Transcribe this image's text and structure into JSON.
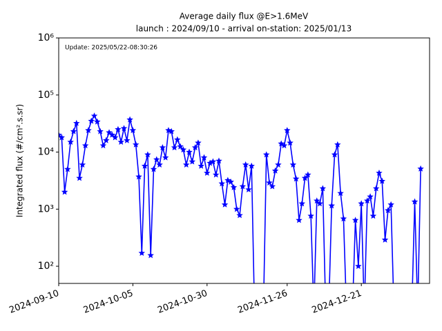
{
  "chart_data": {
    "type": "line",
    "title": "Average daily flux @E>1.6MeV",
    "subtitle": "launch : 2024/09/10 - arrival on-station: 2025/01/13",
    "annotation": "Update: 2025/05/22-08:30:26",
    "y_label": "Integrated flux (#/cm².s.sr)",
    "log_y": true,
    "grid": false,
    "xlim": [
      "2024-09-10",
      "2025-01-13"
    ],
    "xticks": [
      "2024-09-10",
      "2024-10-05",
      "2024-10-30",
      "2024-11-26",
      "2024-12-21"
    ],
    "ylim": [
      50,
      1000000
    ],
    "yticks": [
      {
        "value": 100,
        "label": "10²"
      },
      {
        "value": 1000,
        "label": "10³"
      },
      {
        "value": 10000,
        "label": "10⁴"
      },
      {
        "value": 100000,
        "label": "10⁵"
      },
      {
        "value": 1000000,
        "label": "10⁶"
      }
    ],
    "x": [
      "2024-09-10",
      "2024-09-11",
      "2024-09-12",
      "2024-09-13",
      "2024-09-14",
      "2024-09-15",
      "2024-09-16",
      "2024-09-17",
      "2024-09-18",
      "2024-09-19",
      "2024-09-20",
      "2024-09-21",
      "2024-09-22",
      "2024-09-23",
      "2024-09-24",
      "2024-09-25",
      "2024-09-26",
      "2024-09-27",
      "2024-09-28",
      "2024-09-29",
      "2024-09-30",
      "2024-10-01",
      "2024-10-02",
      "2024-10-03",
      "2024-10-04",
      "2024-10-05",
      "2024-10-06",
      "2024-10-07",
      "2024-10-08",
      "2024-10-09",
      "2024-10-10",
      "2024-10-11",
      "2024-10-12",
      "2024-10-13",
      "2024-10-14",
      "2024-10-15",
      "2024-10-16",
      "2024-10-17",
      "2024-10-18",
      "2024-10-19",
      "2024-10-20",
      "2024-10-21",
      "2024-10-22",
      "2024-10-23",
      "2024-10-24",
      "2024-10-25",
      "2024-10-26",
      "2024-10-27",
      "2024-10-28",
      "2024-10-29",
      "2024-10-30",
      "2024-10-31",
      "2024-11-01",
      "2024-11-02",
      "2024-11-03",
      "2024-11-04",
      "2024-11-05",
      "2024-11-06",
      "2024-11-07",
      "2024-11-08",
      "2024-11-09",
      "2024-11-10",
      "2024-11-11",
      "2024-11-12",
      "2024-11-13",
      "2024-11-14",
      "2024-11-15",
      "2024-11-16",
      "2024-11-17",
      "2024-11-18",
      "2024-11-19",
      "2024-11-20",
      "2024-11-21",
      "2024-11-22",
      "2024-11-23",
      "2024-11-24",
      "2024-11-25",
      "2024-11-26",
      "2024-11-27",
      "2024-11-28",
      "2024-11-29",
      "2024-11-30",
      "2024-12-01",
      "2024-12-02",
      "2024-12-03",
      "2024-12-04",
      "2024-12-05",
      "2024-12-06",
      "2024-12-07",
      "2024-12-08",
      "2024-12-09",
      "2024-12-10",
      "2024-12-11",
      "2024-12-12",
      "2024-12-13",
      "2024-12-14",
      "2024-12-15",
      "2024-12-16",
      "2024-12-17",
      "2024-12-18",
      "2024-12-19",
      "2024-12-20",
      "2024-12-21",
      "2024-12-22",
      "2024-12-23",
      "2024-12-24",
      "2024-12-25",
      "2024-12-26",
      "2024-12-27",
      "2024-12-28",
      "2024-12-29",
      "2024-12-30",
      "2024-12-31",
      "2025-01-01",
      "2025-01-02",
      "2025-01-03",
      "2025-01-04",
      "2025-01-05",
      "2025-01-06",
      "2025-01-07",
      "2025-01-08",
      "2025-01-09",
      "2025-01-10"
    ],
    "series": [
      {
        "name": "flux",
        "color": "#0000ff",
        "values": [
          20000,
          18000,
          2000,
          5000,
          15000,
          23000,
          32000,
          3500,
          6000,
          13000,
          24000,
          35000,
          43000,
          34000,
          23000,
          13000,
          16000,
          22000,
          20000,
          18000,
          25000,
          15000,
          26000,
          16000,
          37000,
          24000,
          13500,
          3700,
          170,
          5700,
          9000,
          155,
          5000,
          7400,
          6000,
          12000,
          8000,
          24000,
          23000,
          12000,
          16500,
          12500,
          11000,
          6000,
          10000,
          6800,
          12000,
          14500,
          5700,
          8000,
          4300,
          6400,
          6800,
          4000,
          7000,
          2800,
          1200,
          3200,
          3000,
          2400,
          1000,
          780,
          2500,
          6000,
          2200,
          5700,
          0,
          0,
          0,
          0,
          9000,
          2900,
          2500,
          4700,
          6000,
          14000,
          13000,
          24000,
          14500,
          6000,
          3400,
          640,
          1250,
          3500,
          4000,
          760,
          0,
          1400,
          1250,
          2300,
          0,
          0,
          1150,
          9000,
          13500,
          1900,
          680,
          0,
          0,
          0,
          640,
          100,
          1250,
          0,
          1400,
          1650,
          760,
          2300,
          4300,
          3100,
          290,
          950,
          1200,
          0,
          0,
          0,
          0,
          0,
          0,
          0,
          1350,
          0,
          5100
        ]
      }
    ]
  }
}
